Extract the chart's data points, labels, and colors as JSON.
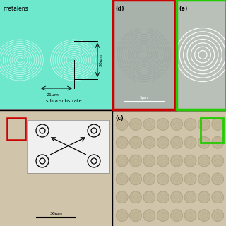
{
  "teal_bg": "#6de8cc",
  "gray_d_bg": "#a8b2aa",
  "gray_e_bg": "#b8c0b8",
  "beige_bg": "#d0c4aa",
  "white_bg": "#f0f0f0",
  "panel_a_label": "metalens",
  "panel_a_sub": "silica substrate",
  "panel_a_dim1": "20μm",
  "panel_a_dim2": "21μm",
  "panel_d_label": "(d)",
  "panel_e_label": "(e)",
  "panel_c_label": "(c)",
  "scale_5um": "5μm",
  "scale_30um": "30μm",
  "red_border": "#cc0000",
  "green_border": "#22cc00",
  "black": "#000000",
  "white": "#ffffff"
}
